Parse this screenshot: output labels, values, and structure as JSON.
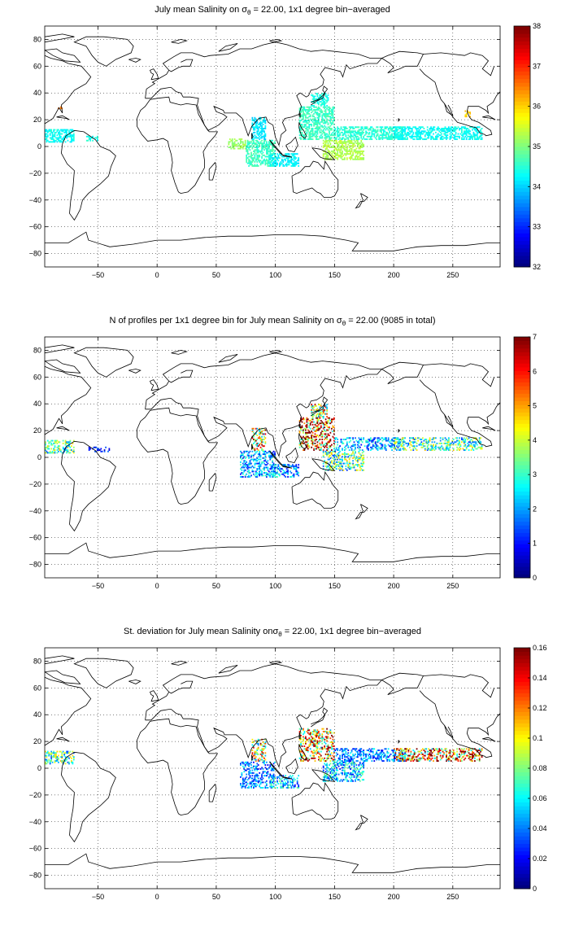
{
  "panels": [
    {
      "title_pre": "July mean Salinity on ",
      "title_sym": "σ",
      "title_sub": "θ",
      "title_post": " = 22.00, 1x1 degree bin−averaged",
      "colorbar": {
        "min": 32,
        "max": 38,
        "ticks": [
          "32",
          "33",
          "34",
          "35",
          "36",
          "37",
          "38"
        ]
      }
    },
    {
      "title_pre": "N of profiles per 1x1 degree bin for July mean Salinity on ",
      "title_sym": "σ",
      "title_sub": "θ",
      "title_post": " = 22.00 (9085 in total)",
      "colorbar": {
        "min": 0,
        "max": 7,
        "ticks": [
          "0",
          "1",
          "2",
          "3",
          "4",
          "5",
          "6",
          "7"
        ]
      }
    },
    {
      "title_pre": "St. deviation for July mean Salinity on",
      "title_sym": "σ",
      "title_sub": "θ",
      "title_post": " = 22.00, 1x1 degree bin−averaged",
      "colorbar": {
        "min": 0,
        "max": 0.16,
        "ticks": [
          "0",
          "0.02",
          "0.04",
          "0.06",
          "0.08",
          "0.1",
          "0.12",
          "0.14",
          "0.16"
        ]
      }
    }
  ],
  "axes": {
    "xlim": [
      -95,
      290
    ],
    "ylim": [
      -90,
      90
    ],
    "xticks": [
      -50,
      0,
      50,
      100,
      150,
      200,
      250
    ],
    "yticks": [
      -80,
      -60,
      -40,
      -20,
      0,
      20,
      40,
      60,
      80
    ],
    "grid": "dotted",
    "colormap": "jet"
  },
  "chart_data": [
    {
      "type": "heatmap",
      "title": "July mean Salinity on σθ = 22.00, 1x1 degree bin−averaged",
      "units": "salinity",
      "regions": [
        {
          "lon": [
            -95,
            -70
          ],
          "lat": [
            3,
            13
          ],
          "value": 34.3
        },
        {
          "lon": [
            -60,
            -50
          ],
          "lat": [
            4,
            8
          ],
          "value": 34.4
        },
        {
          "lon": [
            -85,
            -80
          ],
          "lat": [
            28,
            30
          ],
          "value": 36.5
        },
        {
          "lon": [
            60,
            75
          ],
          "lat": [
            -2,
            6
          ],
          "value": 35.2
        },
        {
          "lon": [
            75,
            100
          ],
          "lat": [
            -15,
            5
          ],
          "value": 34.6
        },
        {
          "lon": [
            80,
            92
          ],
          "lat": [
            5,
            22
          ],
          "value": 34.1
        },
        {
          "lon": [
            95,
            120
          ],
          "lat": [
            -15,
            -5
          ],
          "value": 34.2
        },
        {
          "lon": [
            120,
            150
          ],
          "lat": [
            5,
            30
          ],
          "value": 34.6
        },
        {
          "lon": [
            130,
            145
          ],
          "lat": [
            30,
            40
          ],
          "value": 34.4
        },
        {
          "lon": [
            140,
            175
          ],
          "lat": [
            -10,
            5
          ],
          "value": 35.3
        },
        {
          "lon": [
            150,
            210
          ],
          "lat": [
            5,
            15
          ],
          "value": 34.5
        },
        {
          "lon": [
            200,
            275
          ],
          "lat": [
            5,
            15
          ],
          "value": 34.3
        },
        {
          "lon": [
            260,
            265
          ],
          "lat": [
            22,
            27
          ],
          "value": 36.0
        }
      ]
    },
    {
      "type": "heatmap",
      "title": "N of profiles per 1x1 degree bin for July mean Salinity on σθ = 22.00 (9085 in total)",
      "units": "profiles",
      "total": 9085,
      "regions": [
        {
          "lon": [
            -95,
            -70
          ],
          "lat": [
            3,
            13
          ],
          "value": 3
        },
        {
          "lon": [
            -60,
            -40
          ],
          "lat": [
            4,
            8
          ],
          "value": 1
        },
        {
          "lon": [
            70,
            100
          ],
          "lat": [
            -15,
            5
          ],
          "value": 2
        },
        {
          "lon": [
            80,
            92
          ],
          "lat": [
            5,
            22
          ],
          "value": 5
        },
        {
          "lon": [
            95,
            120
          ],
          "lat": [
            -15,
            -5
          ],
          "value": 2
        },
        {
          "lon": [
            120,
            150
          ],
          "lat": [
            5,
            30
          ],
          "value": 6
        },
        {
          "lon": [
            130,
            145
          ],
          "lat": [
            30,
            40
          ],
          "value": 4
        },
        {
          "lon": [
            140,
            175
          ],
          "lat": [
            -10,
            5
          ],
          "value": 3
        },
        {
          "lon": [
            150,
            210
          ],
          "lat": [
            5,
            15
          ],
          "value": 2
        },
        {
          "lon": [
            200,
            275
          ],
          "lat": [
            5,
            15
          ],
          "value": 3
        }
      ]
    },
    {
      "type": "heatmap",
      "title": "St. deviation for July mean Salinity on σθ = 22.00, 1x1 degree bin−averaged",
      "units": "salinity std",
      "regions": [
        {
          "lon": [
            -95,
            -70
          ],
          "lat": [
            3,
            13
          ],
          "value": 0.07
        },
        {
          "lon": [
            70,
            100
          ],
          "lat": [
            -15,
            5
          ],
          "value": 0.04
        },
        {
          "lon": [
            80,
            92
          ],
          "lat": [
            5,
            22
          ],
          "value": 0.1
        },
        {
          "lon": [
            95,
            120
          ],
          "lat": [
            -15,
            -5
          ],
          "value": 0.05
        },
        {
          "lon": [
            120,
            150
          ],
          "lat": [
            5,
            30
          ],
          "value": 0.11
        },
        {
          "lon": [
            140,
            175
          ],
          "lat": [
            -10,
            5
          ],
          "value": 0.05
        },
        {
          "lon": [
            150,
            210
          ],
          "lat": [
            5,
            15
          ],
          "value": 0.04
        },
        {
          "lon": [
            200,
            275
          ],
          "lat": [
            5,
            15
          ],
          "value": 0.12
        }
      ]
    }
  ]
}
